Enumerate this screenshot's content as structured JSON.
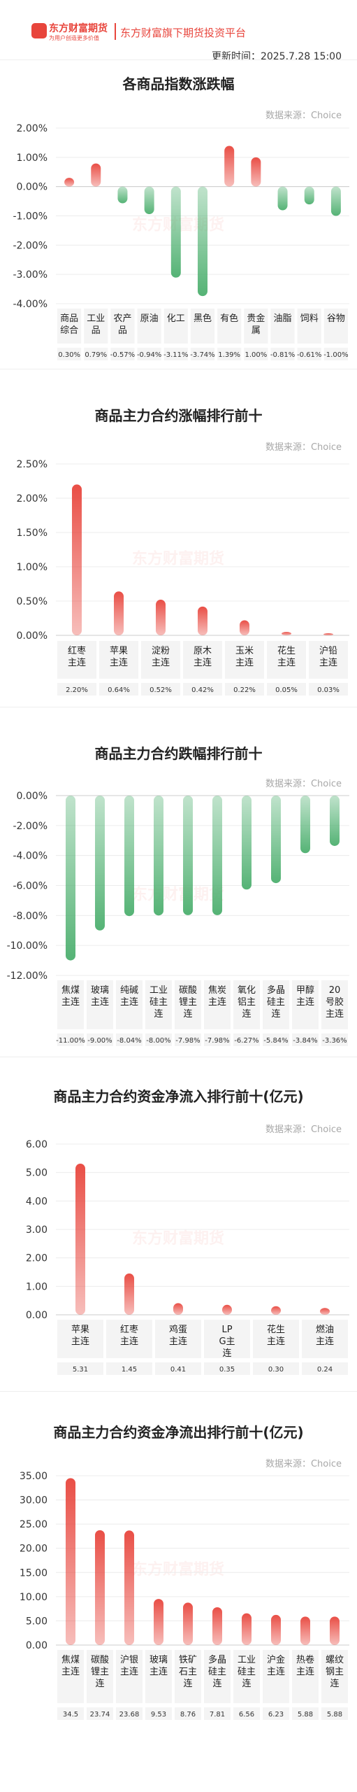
{
  "header": {
    "logo_text": "东方财富期货",
    "logo_slogan": "为用户创造更多价值",
    "platform": "东方财富旗下期货投资平台",
    "update_time": "更新时间：2025.7.28 15:00"
  },
  "colors": {
    "up": "#e8453c",
    "down": "#4caf6e",
    "accent": "#e8453c"
  },
  "charts": [
    {
      "title": "各商品指数涨跌幅",
      "source": "数据来源：Choice"
    },
    {
      "title": "商品主力合约涨幅排行前十",
      "source": "数据来源：Choice"
    },
    {
      "title": "商品主力合约跌幅排行前十",
      "source": "数据来源：Choice"
    },
    {
      "title": "商品主力合约资金净流入排行前十(亿元)",
      "source": "数据来源：Choice"
    },
    {
      "title": "商品主力合约资金净流出排行前十(亿元)",
      "source": "数据来源：Choice"
    }
  ],
  "chart_data": [
    {
      "type": "bar",
      "title": "各商品指数涨跌幅",
      "categories": [
        "商品综合",
        "工业品",
        "农产品",
        "原油",
        "化工",
        "黑色",
        "有色",
        "贵金属",
        "油脂",
        "饲料",
        "谷物"
      ],
      "values": [
        0.3,
        0.79,
        -0.57,
        -0.94,
        -3.11,
        -3.74,
        1.39,
        1.0,
        -0.81,
        -0.61,
        -1.0
      ],
      "value_labels": [
        "0.30%",
        "0.79%",
        "-0.57%",
        "-0.94%",
        "-3.11%",
        "-3.74%",
        "1.39%",
        "1.00%",
        "-0.81%",
        "-0.61%",
        "-1.00%"
      ],
      "yticks": [
        "2.00%",
        "1.00%",
        "0.00%",
        "-1.00%",
        "-2.00%",
        "-3.00%",
        "-4.00%"
      ],
      "ylim": [
        -4,
        2
      ]
    },
    {
      "type": "bar",
      "title": "商品主力合约涨幅排行前十",
      "categories": [
        "红枣主连",
        "苹果主连",
        "淀粉主连",
        "原木主连",
        "玉米主连",
        "花生主连",
        "沪铅主连"
      ],
      "values": [
        2.2,
        0.64,
        0.52,
        0.42,
        0.22,
        0.05,
        0.03
      ],
      "value_labels": [
        "2.20%",
        "0.64%",
        "0.52%",
        "0.42%",
        "0.22%",
        "0.05%",
        "0.03%"
      ],
      "yticks": [
        "2.50%",
        "2.00%",
        "1.50%",
        "1.00%",
        "0.50%",
        "0.00%"
      ],
      "ylim": [
        0,
        2.5
      ]
    },
    {
      "type": "bar",
      "title": "商品主力合约跌幅排行前十",
      "categories": [
        "焦煤主连",
        "玻璃主连",
        "纯碱主连",
        "工业硅主连",
        "碳酸锂主连",
        "焦炭主连",
        "氧化铝主连",
        "多晶硅主连",
        "甲醇主连",
        "20号胶主连"
      ],
      "values": [
        -11.0,
        -9.0,
        -8.04,
        -8.0,
        -7.98,
        -7.98,
        -6.27,
        -5.84,
        -3.84,
        -3.36
      ],
      "value_labels": [
        "-11.00%",
        "-9.00%",
        "-8.04%",
        "-8.00%",
        "-7.98%",
        "-7.98%",
        "-6.27%",
        "-5.84%",
        "-3.84%",
        "-3.36%"
      ],
      "yticks": [
        "0.00%",
        "-2.00%",
        "-4.00%",
        "-6.00%",
        "-8.00%",
        "-10.00%",
        "-12.00%"
      ],
      "ylim": [
        -12,
        0
      ]
    },
    {
      "type": "bar",
      "title": "商品主力合约资金净流入排行前十(亿元)",
      "categories": [
        "苹果主连",
        "红枣主连",
        "鸡蛋主连",
        "LPG主连",
        "花生主连",
        "燃油主连"
      ],
      "values": [
        5.31,
        1.45,
        0.41,
        0.35,
        0.3,
        0.24
      ],
      "value_labels": [
        "5.31",
        "1.45",
        "0.41",
        "0.35",
        "0.30",
        "0.24"
      ],
      "yticks": [
        "6.00",
        "5.00",
        "4.00",
        "3.00",
        "2.00",
        "1.00",
        "0.00"
      ],
      "ylim": [
        0,
        6
      ]
    },
    {
      "type": "bar",
      "title": "商品主力合约资金净流出排行前十(亿元)",
      "categories": [
        "焦煤主连",
        "碳酸锂主连",
        "沪银主连",
        "玻璃主连",
        "铁矿石主连",
        "多晶硅主连",
        "工业硅主连",
        "沪金主连",
        "热卷主连",
        "螺纹钢主连"
      ],
      "values": [
        34.5,
        23.74,
        23.68,
        9.53,
        8.76,
        7.81,
        6.56,
        6.23,
        5.88,
        5.88
      ],
      "value_labels": [
        "34.5",
        "23.74",
        "23.68",
        "9.53",
        "8.76",
        "7.81",
        "6.56",
        "6.23",
        "5.88",
        "5.88"
      ],
      "yticks": [
        "35.00",
        "30.00",
        "25.00",
        "20.00",
        "15.00",
        "10.00",
        "5.00",
        "0.00"
      ],
      "ylim": [
        0,
        35
      ]
    }
  ]
}
